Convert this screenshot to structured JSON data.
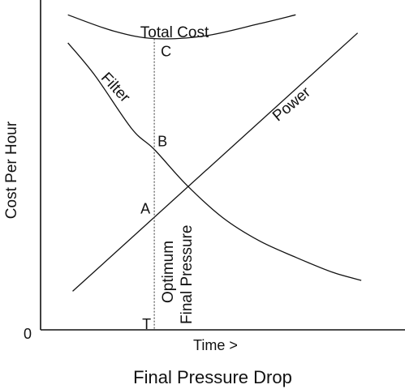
{
  "chart_data": {
    "type": "line",
    "xlabel": "Final Pressure Drop",
    "ylabel": "Cost Per Hour",
    "origin_label": "0",
    "x_axis_note": "Time >",
    "xlim": [
      0,
      1
    ],
    "ylim": [
      0,
      1
    ],
    "grid": false,
    "series": [
      {
        "name": "Total Cost",
        "x": [
          0.075,
          0.2,
          0.312,
          0.45,
          0.6,
          0.7
        ],
        "values": [
          0.955,
          0.906,
          0.883,
          0.891,
          0.928,
          0.955
        ]
      },
      {
        "name": "Filter",
        "x": [
          0.075,
          0.15,
          0.25,
          0.312,
          0.4,
          0.5,
          0.6,
          0.7,
          0.8,
          0.88
        ],
        "values": [
          0.87,
          0.77,
          0.61,
          0.547,
          0.44,
          0.34,
          0.27,
          0.22,
          0.175,
          0.15
        ]
      },
      {
        "name": "Power",
        "x": [
          0.088,
          0.312,
          0.43,
          0.87
        ],
        "values": [
          0.117,
          0.343,
          0.458,
          0.9
        ]
      }
    ],
    "optimum": {
      "x": 0.312,
      "label": "Optimum Final Pressure",
      "points": [
        {
          "label": "C",
          "y": 0.883
        },
        {
          "label": "B",
          "y": 0.547
        },
        {
          "label": "A",
          "y": 0.343
        },
        {
          "label": "T",
          "y": 0
        }
      ]
    }
  }
}
